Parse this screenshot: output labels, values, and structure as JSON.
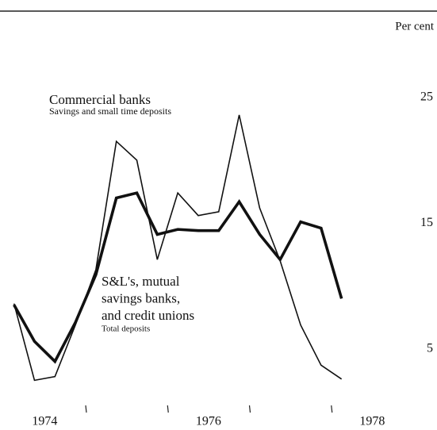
{
  "chart_data": {
    "type": "line",
    "y_axis_label": "Per cent",
    "x": [
      1974.125,
      1974.375,
      1974.625,
      1974.875,
      1975.125,
      1975.375,
      1975.625,
      1975.875,
      1976.125,
      1976.375,
      1976.625,
      1976.875,
      1977.125,
      1977.375,
      1977.625,
      1977.875,
      1978.125
    ],
    "xlim": [
      1974.08,
      1979.0
    ],
    "xticks": [
      {
        "value": 1974.5,
        "label": "1974"
      },
      {
        "value": 1976.5,
        "label": "1976"
      },
      {
        "value": 1978.5,
        "label": "1978"
      }
    ],
    "xtick_marks": [
      1975,
      1976,
      1977,
      1978
    ],
    "ylim": [
      0,
      25.8
    ],
    "yticks": [
      5,
      15,
      25
    ],
    "series": [
      {
        "label_lines": [
          "Commercial banks"
        ],
        "sublabel": "Savings and small time deposits",
        "color": "#111111",
        "width": 1.6,
        "values": [
          8.6,
          2.5,
          2.8,
          6.9,
          11.3,
          21.5,
          20.0,
          12.1,
          17.4,
          15.6,
          15.9,
          23.6,
          16.2,
          12.0,
          6.9,
          3.7,
          2.6
        ]
      },
      {
        "label_lines": [
          "S&L's, mutual",
          "savings banks,",
          "and credit unions"
        ],
        "sublabel": "Total deposits",
        "color": "#111111",
        "width": 3.6,
        "values": [
          8.5,
          5.6,
          4.0,
          7.1,
          10.9,
          17.0,
          17.4,
          14.1,
          14.5,
          14.4,
          14.4,
          16.7,
          14.1,
          12.1,
          15.1,
          14.6,
          9.0
        ]
      }
    ]
  }
}
